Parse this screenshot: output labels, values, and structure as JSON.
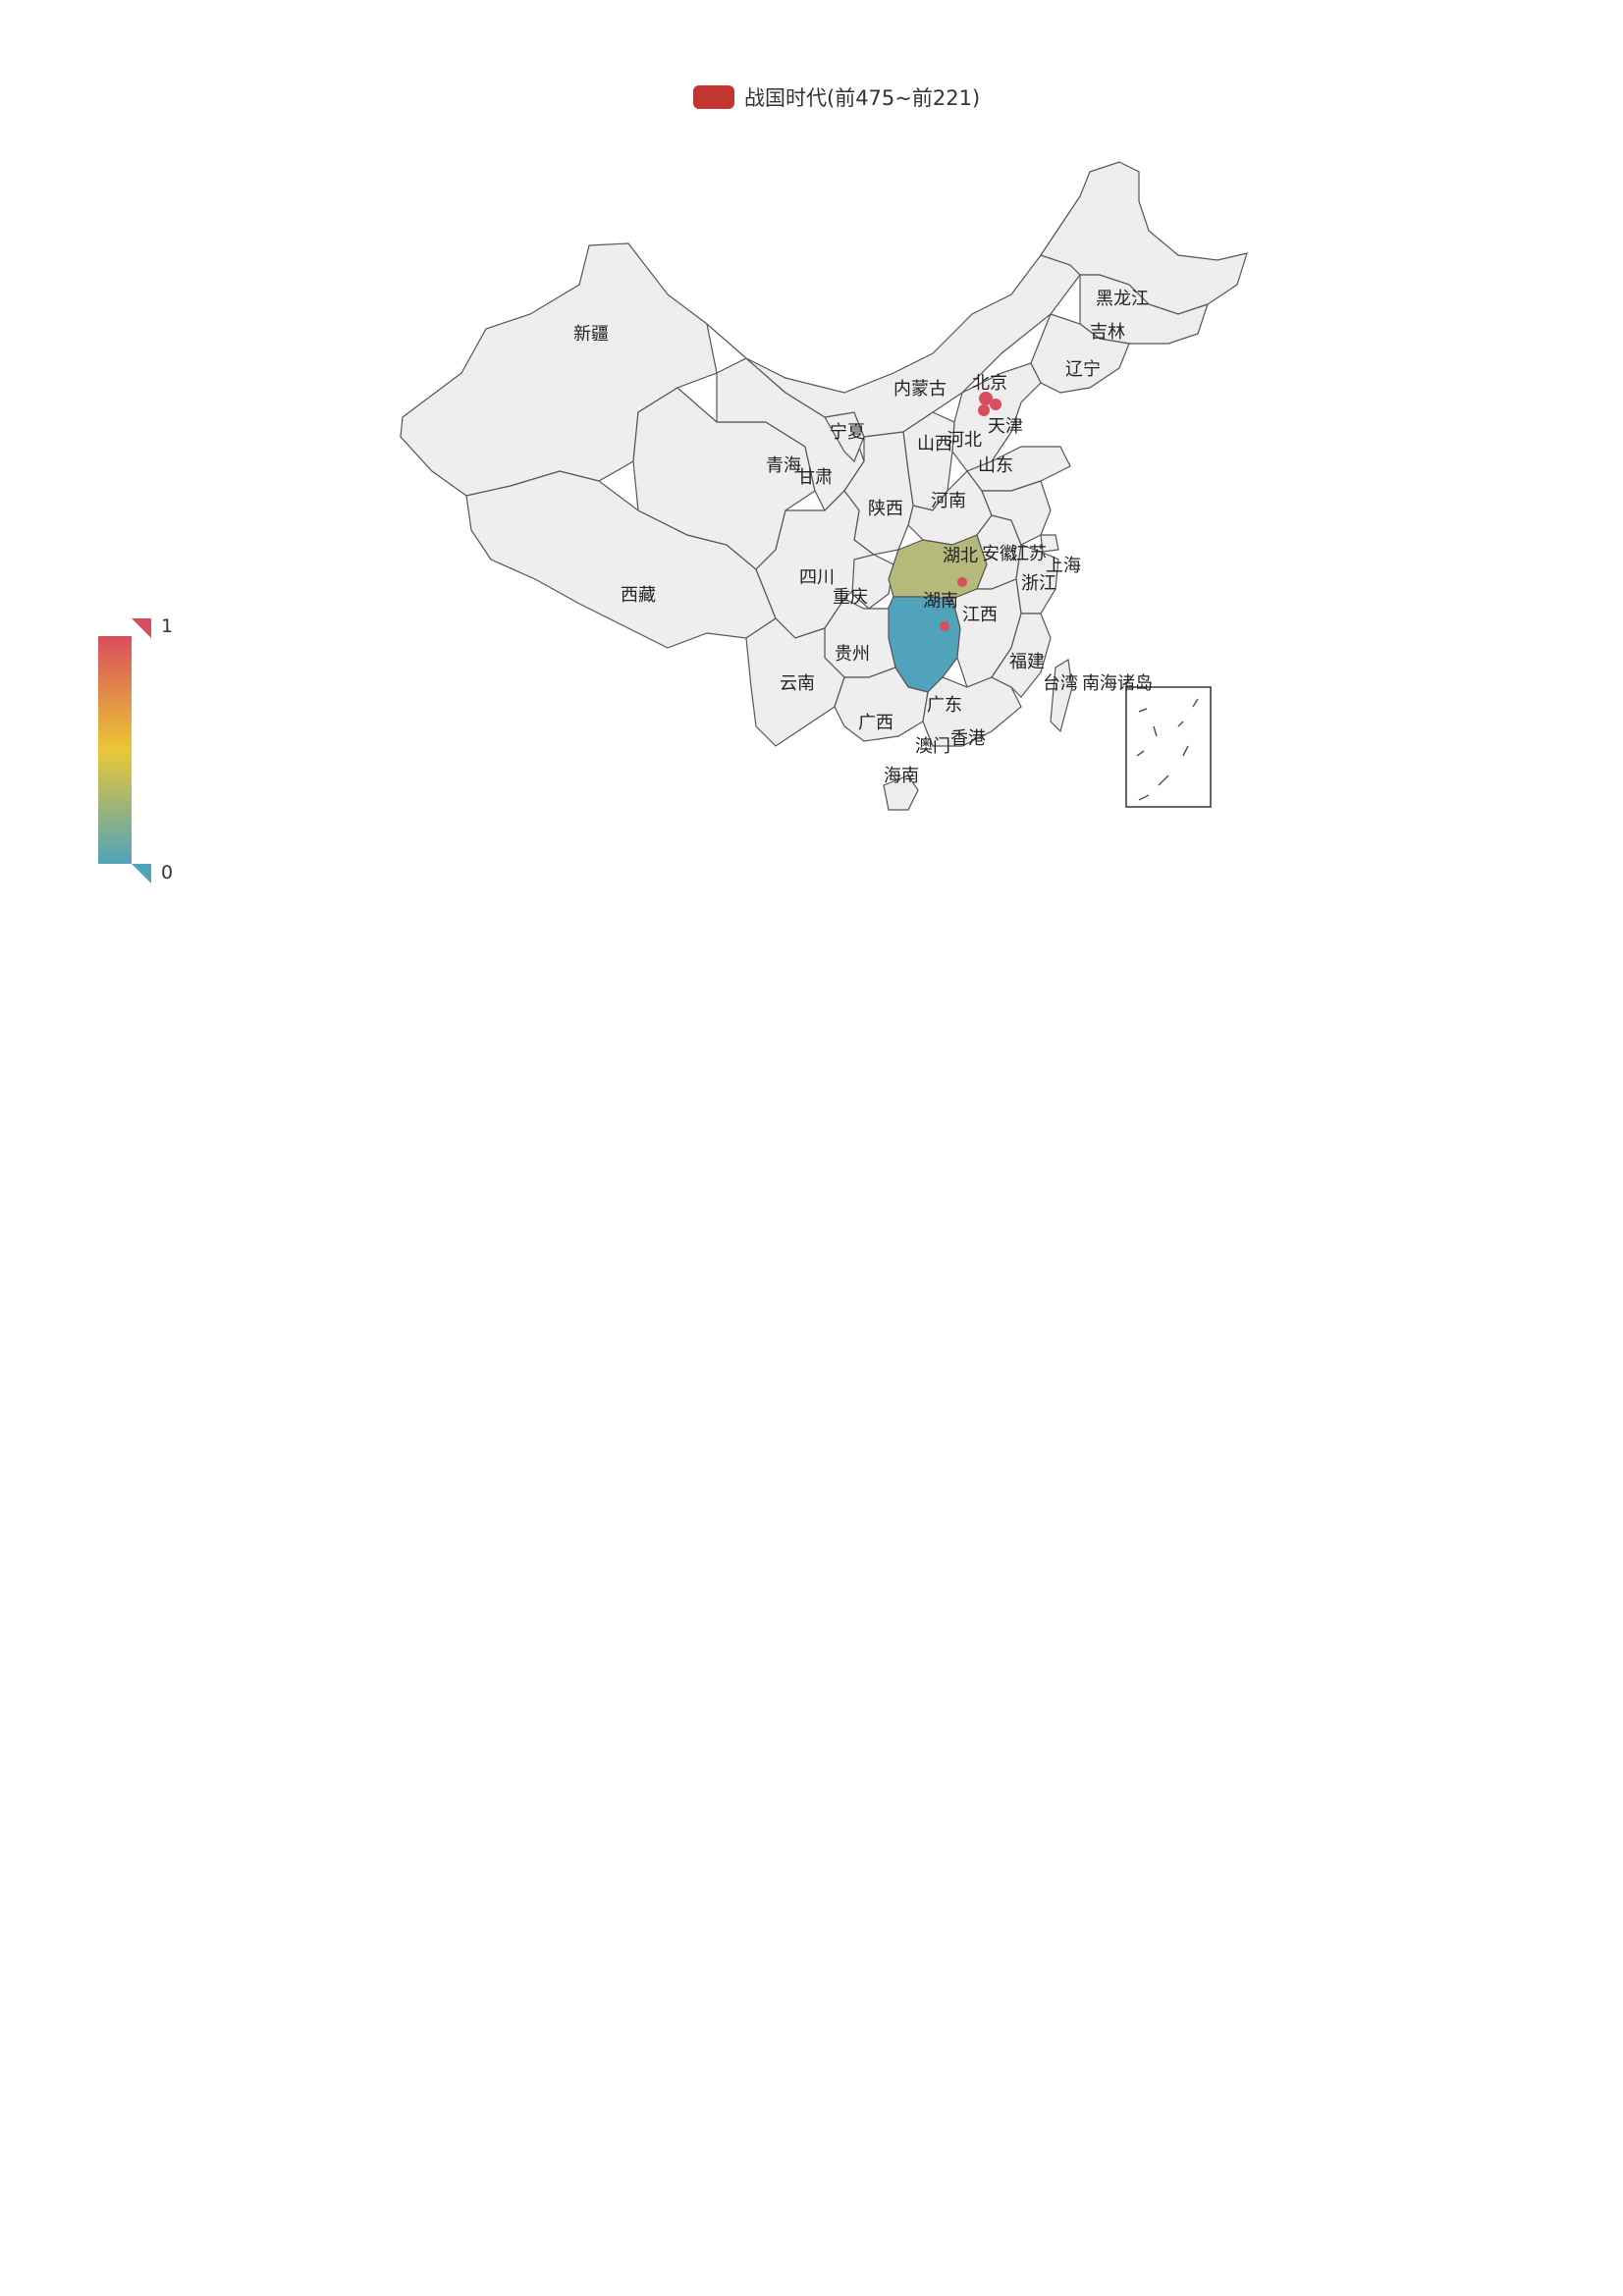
{
  "legend": {
    "label": "战国时代(前475~前221)",
    "color": "#c23531"
  },
  "visual_map": {
    "max_label": "1",
    "min_label": "0",
    "colors": [
      "#d94e5d",
      "#eac736",
      "#50a3ba"
    ]
  },
  "map": {
    "default_fill": "#eeeeee",
    "stroke": "#555555",
    "highlight": [
      {
        "name": "湖北",
        "value": 0.5,
        "color": "#b5b97a"
      },
      {
        "name": "湖南",
        "value": 0.0,
        "color": "#50a3ba"
      }
    ],
    "markers_color": "#d94e5d",
    "provinces": [
      "新疆",
      "西藏",
      "青海",
      "甘肃",
      "宁夏",
      "内蒙古",
      "黑龙江",
      "吉林",
      "辽宁",
      "北京",
      "天津",
      "河北",
      "山西",
      "山东",
      "河南",
      "陕西",
      "四川",
      "重庆",
      "湖北",
      "安徽",
      "江苏",
      "上海",
      "浙江",
      "湖南",
      "江西",
      "贵州",
      "云南",
      "广西",
      "广东",
      "福建",
      "台湾",
      "南海诸岛",
      "澳门",
      "香港",
      "海南"
    ]
  }
}
